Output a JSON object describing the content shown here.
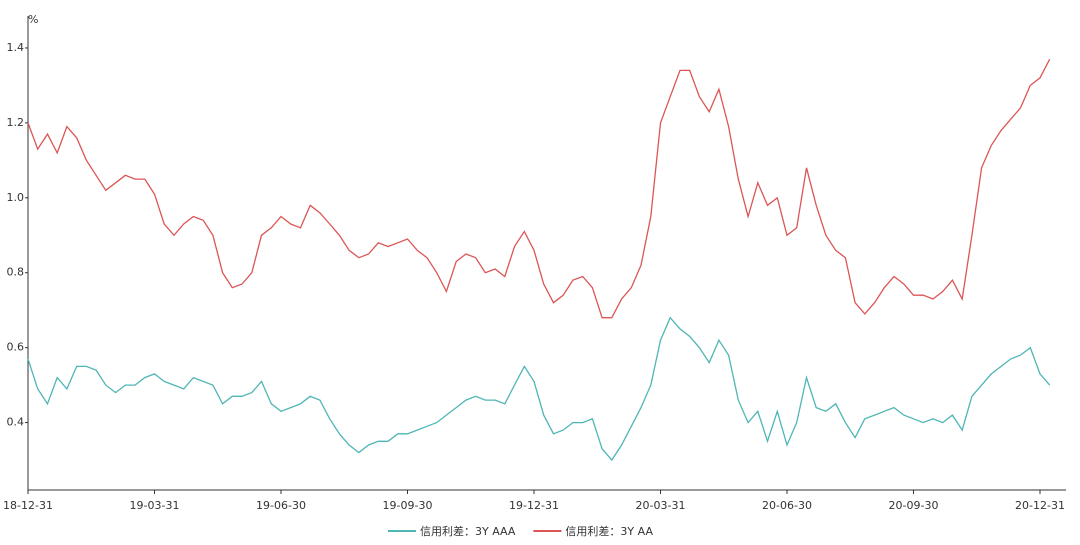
{
  "chart_data": {
    "type": "line",
    "y_unit": "%",
    "categories": [
      "18-12-31",
      null,
      null,
      null,
      null,
      null,
      null,
      null,
      null,
      null,
      null,
      null,
      null,
      "19-03-31",
      null,
      null,
      null,
      null,
      null,
      null,
      null,
      null,
      null,
      null,
      null,
      null,
      "19-06-30",
      null,
      null,
      null,
      null,
      null,
      null,
      null,
      null,
      null,
      null,
      null,
      null,
      "19-09-30",
      null,
      null,
      null,
      null,
      null,
      null,
      null,
      null,
      null,
      null,
      null,
      null,
      "19-12-31",
      null,
      null,
      null,
      null,
      null,
      null,
      null,
      null,
      null,
      null,
      null,
      null,
      "20-03-31",
      null,
      null,
      null,
      null,
      null,
      null,
      null,
      null,
      null,
      null,
      null,
      null,
      "20-06-30",
      null,
      null,
      null,
      null,
      null,
      null,
      null,
      null,
      null,
      null,
      null,
      null,
      "20-09-30",
      null,
      null,
      null,
      null,
      null,
      null,
      null,
      null,
      null,
      null,
      null,
      null,
      "20-12-31",
      null
    ],
    "series": [
      {
        "name": "信用利差：3Y AAA",
        "color": "#4fb5b5",
        "values": [
          0.57,
          0.49,
          0.45,
          0.52,
          0.49,
          0.55,
          0.55,
          0.54,
          0.5,
          0.48,
          0.5,
          0.5,
          0.52,
          0.53,
          0.51,
          0.5,
          0.49,
          0.52,
          0.51,
          0.5,
          0.45,
          0.47,
          0.47,
          0.48,
          0.51,
          0.45,
          0.43,
          0.44,
          0.45,
          0.47,
          0.46,
          0.41,
          0.37,
          0.34,
          0.32,
          0.34,
          0.35,
          0.35,
          0.37,
          0.37,
          0.38,
          0.39,
          0.4,
          0.42,
          0.44,
          0.46,
          0.47,
          0.46,
          0.46,
          0.45,
          0.5,
          0.55,
          0.51,
          0.42,
          0.37,
          0.38,
          0.4,
          0.4,
          0.41,
          0.33,
          0.3,
          0.34,
          0.39,
          0.44,
          0.5,
          0.62,
          0.68,
          0.65,
          0.63,
          0.6,
          0.56,
          0.62,
          0.58,
          0.46,
          0.4,
          0.43,
          0.35,
          0.43,
          0.34,
          0.4,
          0.52,
          0.44,
          0.43,
          0.45,
          0.4,
          0.36,
          0.41,
          0.42,
          0.43,
          0.44,
          0.42,
          0.41,
          0.4,
          0.41,
          0.4,
          0.42,
          0.38,
          0.47,
          0.5,
          0.53,
          0.55,
          0.57,
          0.58,
          0.6,
          0.53,
          0.5
        ]
      },
      {
        "name": "信用利差：3Y AA",
        "color": "#dc5555",
        "values": [
          1.2,
          1.13,
          1.17,
          1.12,
          1.19,
          1.16,
          1.1,
          1.06,
          1.02,
          1.04,
          1.06,
          1.05,
          1.05,
          1.01,
          0.93,
          0.9,
          0.93,
          0.95,
          0.94,
          0.9,
          0.8,
          0.76,
          0.77,
          0.8,
          0.9,
          0.92,
          0.95,
          0.93,
          0.92,
          0.98,
          0.96,
          0.93,
          0.9,
          0.86,
          0.84,
          0.85,
          0.88,
          0.87,
          0.88,
          0.89,
          0.86,
          0.84,
          0.8,
          0.75,
          0.83,
          0.85,
          0.84,
          0.8,
          0.81,
          0.79,
          0.87,
          0.91,
          0.86,
          0.77,
          0.72,
          0.74,
          0.78,
          0.79,
          0.76,
          0.68,
          0.68,
          0.73,
          0.76,
          0.82,
          0.95,
          1.2,
          1.27,
          1.34,
          1.34,
          1.27,
          1.23,
          1.29,
          1.19,
          1.05,
          0.95,
          1.04,
          0.98,
          1.0,
          0.9,
          0.92,
          1.08,
          0.98,
          0.9,
          0.86,
          0.84,
          0.72,
          0.69,
          0.72,
          0.76,
          0.79,
          0.77,
          0.74,
          0.74,
          0.73,
          0.75,
          0.78,
          0.73,
          0.9,
          1.08,
          1.14,
          1.18,
          1.21,
          1.24,
          1.3,
          1.32,
          1.37
        ]
      }
    ],
    "ylim": [
      0.22,
      1.48
    ],
    "yticks": [
      0.4,
      0.6,
      0.8,
      {
        "value": 1,
        "label": "1.0"
      },
      1.2,
      1.4
    ]
  }
}
